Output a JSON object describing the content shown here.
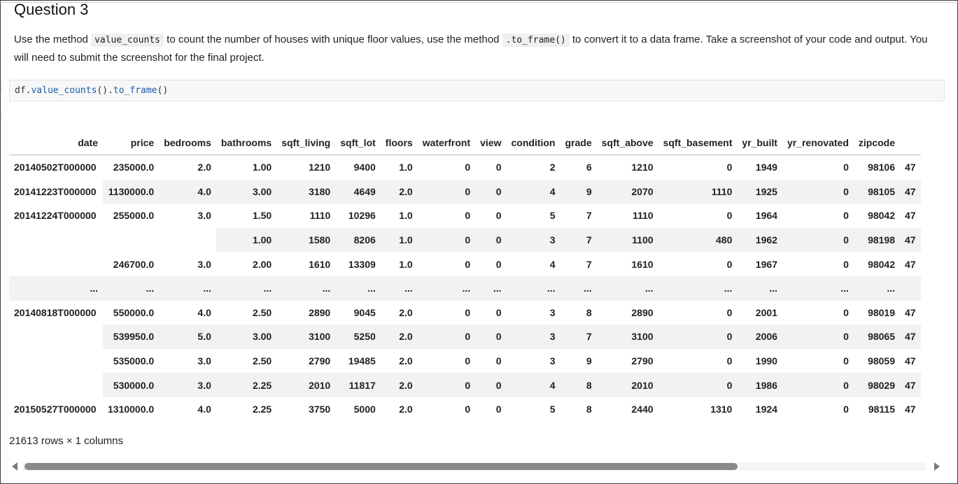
{
  "heading": "Question 3",
  "prompt": {
    "part1": "Use the method ",
    "code1": "value_counts",
    "part2": " to count the number of houses with unique floor values, use the method ",
    "code2": ".to_frame()",
    "part3": " to convert it to a data frame. Take a screenshot of your code and output. You will need to submit the screenshot for the final project."
  },
  "code_cell": {
    "obj": "df.",
    "fn1": "value_counts",
    "mid": "().",
    "fn2": "to_frame",
    "end": "()"
  },
  "gutter_marks": [
    ":",
    ":"
  ],
  "table": {
    "columns": [
      "date",
      "price",
      "bedrooms",
      "bathrooms",
      "sqft_living",
      "sqft_lot",
      "floors",
      "waterfront",
      "view",
      "condition",
      "grade",
      "sqft_above",
      "sqft_basement",
      "yr_built",
      "yr_renovated",
      "zipcode",
      "47"
    ],
    "rows": [
      {
        "date": "20140502T000000",
        "price": "235000.0",
        "bedrooms": "2.0",
        "cells": [
          "1.00",
          "1210",
          "9400",
          "1.0",
          "0",
          "0",
          "2",
          "6",
          "1210",
          "0",
          "1949",
          "0",
          "98106",
          "47"
        ]
      },
      {
        "date": "20141223T000000",
        "price": "1130000.0",
        "bedrooms": "4.0",
        "cells": [
          "3.00",
          "3180",
          "4649",
          "2.0",
          "0",
          "0",
          "4",
          "9",
          "2070",
          "1110",
          "1925",
          "0",
          "98105",
          "47"
        ]
      },
      {
        "date": "20141224T000000",
        "price": "255000.0",
        "bedrooms": "3.0",
        "cells": [
          "1.50",
          "1110",
          "10296",
          "1.0",
          "0",
          "0",
          "5",
          "7",
          "1110",
          "0",
          "1964",
          "0",
          "98042",
          "47"
        ]
      },
      {
        "date": "",
        "price": "",
        "bedrooms": "",
        "cells": [
          "1.00",
          "1580",
          "8206",
          "1.0",
          "0",
          "0",
          "3",
          "7",
          "1100",
          "480",
          "1962",
          "0",
          "98198",
          "47"
        ]
      },
      {
        "date": "",
        "price": "246700.0",
        "bedrooms": "3.0",
        "cells": [
          "2.00",
          "1610",
          "13309",
          "1.0",
          "0",
          "0",
          "4",
          "7",
          "1610",
          "0",
          "1967",
          "0",
          "98042",
          "47"
        ]
      },
      {
        "date": "...",
        "price": "...",
        "bedrooms": "...",
        "cells": [
          "...",
          "...",
          "...",
          "...",
          "...",
          "...",
          "...",
          "...",
          "...",
          "...",
          "...",
          "...",
          "...",
          ""
        ],
        "ellipsis": true
      },
      {
        "date": "20140818T000000",
        "price": "550000.0",
        "bedrooms": "4.0",
        "cells": [
          "2.50",
          "2890",
          "9045",
          "2.0",
          "0",
          "0",
          "3",
          "8",
          "2890",
          "0",
          "2001",
          "0",
          "98019",
          "47"
        ]
      },
      {
        "date": "",
        "price": "539950.0",
        "bedrooms": "5.0",
        "cells": [
          "3.00",
          "3100",
          "5250",
          "2.0",
          "0",
          "0",
          "3",
          "7",
          "3100",
          "0",
          "2006",
          "0",
          "98065",
          "47"
        ]
      },
      {
        "date": "",
        "price": "535000.0",
        "bedrooms": "3.0",
        "cells": [
          "2.50",
          "2790",
          "19485",
          "2.0",
          "0",
          "0",
          "3",
          "9",
          "2790",
          "0",
          "1990",
          "0",
          "98059",
          "47"
        ]
      },
      {
        "date": "",
        "price": "530000.0",
        "bedrooms": "3.0",
        "cells": [
          "2.25",
          "2010",
          "11817",
          "2.0",
          "0",
          "0",
          "4",
          "8",
          "2010",
          "0",
          "1986",
          "0",
          "98029",
          "47"
        ]
      },
      {
        "date": "20150527T000000",
        "price": "1310000.0",
        "bedrooms": "4.0",
        "cells": [
          "2.25",
          "3750",
          "5000",
          "2.0",
          "0",
          "0",
          "5",
          "8",
          "2440",
          "1310",
          "1924",
          "0",
          "98115",
          "47"
        ]
      }
    ]
  },
  "summary": "21613 rows × 1 columns",
  "scrollbar": {
    "position_percent": 0,
    "visible_percent": 79
  }
}
